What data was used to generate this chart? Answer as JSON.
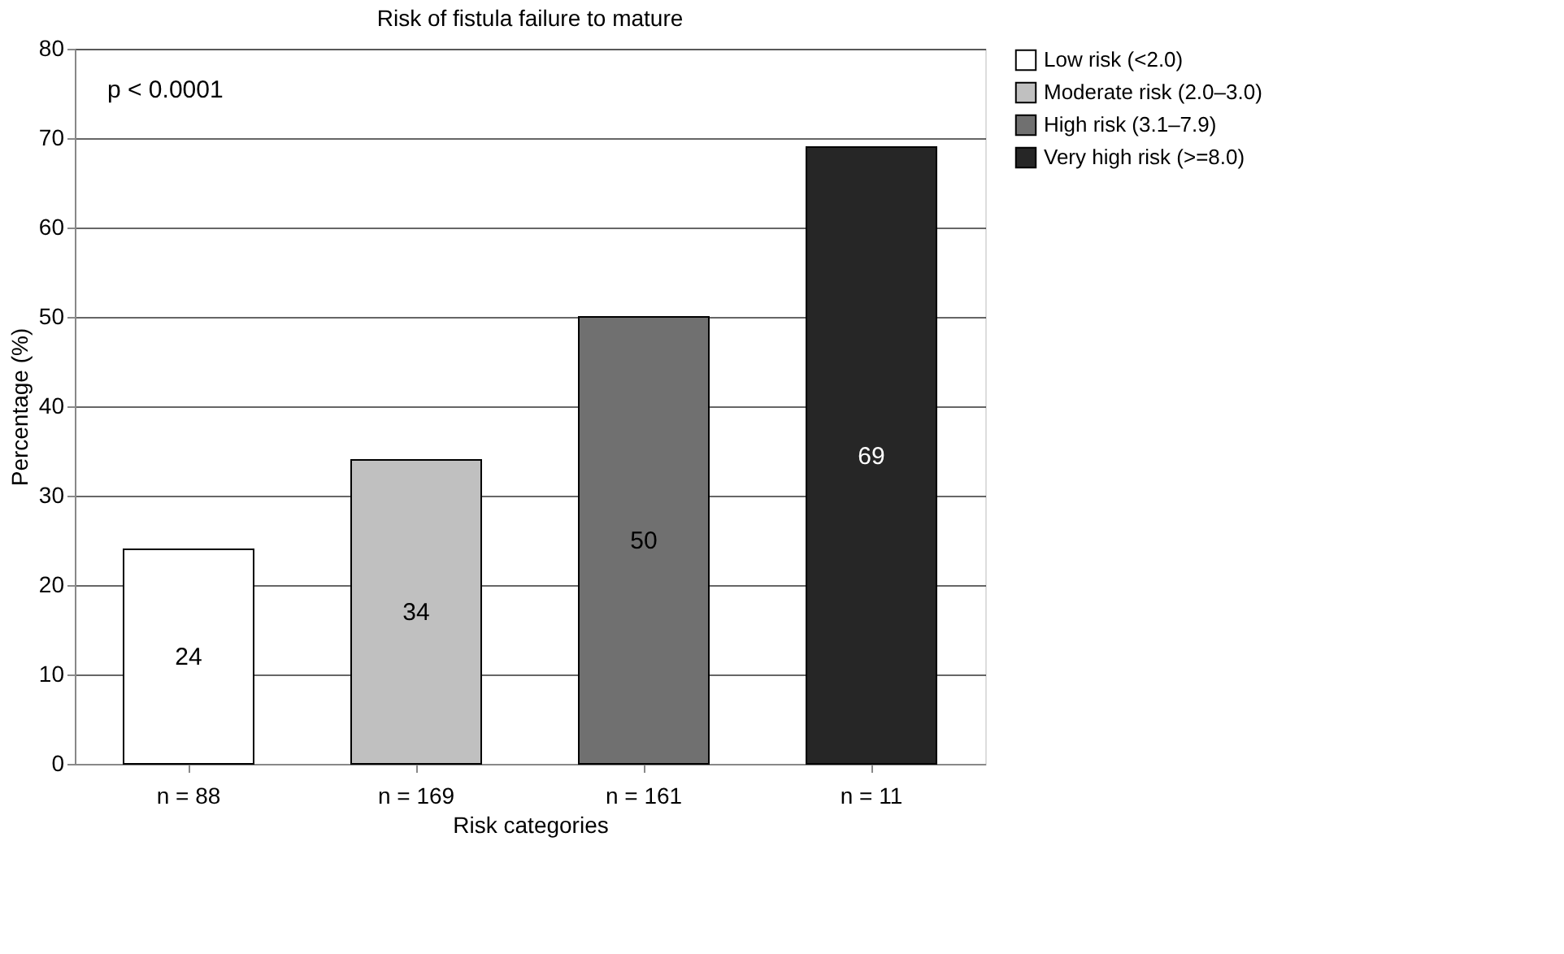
{
  "chart_data": {
    "type": "bar",
    "title": "Risk of fistula failure to mature",
    "xlabel": "Risk categories",
    "ylabel": "Percentage (%)",
    "categories": [
      "n = 88",
      "n = 169",
      "n = 161",
      "n = 11"
    ],
    "series": [
      {
        "name": "Low risk (<2.0)",
        "color": "#ffffff",
        "values": [
          24,
          null,
          null,
          null
        ]
      },
      {
        "name": "Moderate risk (2.0–3.0)",
        "color": "#c0c0c0",
        "values": [
          null,
          34,
          null,
          null
        ]
      },
      {
        "name": "High risk (3.1–7.9)",
        "color": "#707070",
        "values": [
          null,
          null,
          50,
          null
        ]
      },
      {
        "name": "Very high risk (>=8.0)",
        "color": "#262626",
        "values": [
          null,
          null,
          null,
          69
        ]
      }
    ],
    "ylim": [
      0,
      80
    ],
    "yticks": [
      0,
      10,
      20,
      30,
      40,
      50,
      60,
      70,
      80
    ],
    "grid": "y",
    "legend": "right",
    "data_labels": true,
    "annotations": [
      "p < 0.0001"
    ]
  }
}
